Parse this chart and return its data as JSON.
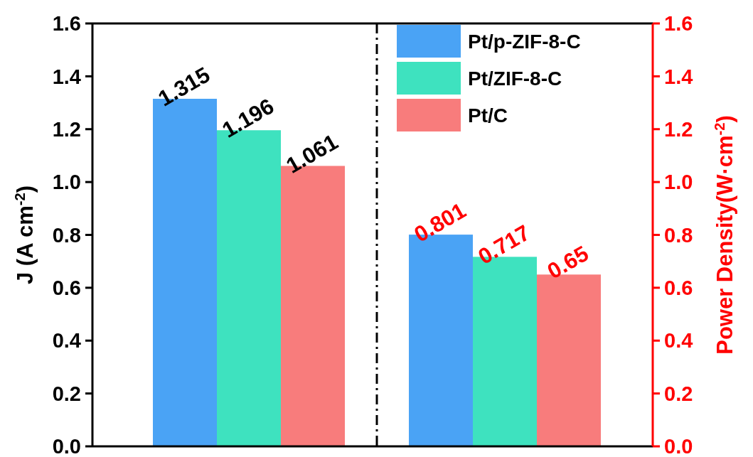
{
  "chart_data": {
    "type": "bar",
    "categories": [
      null,
      null
    ],
    "ylabel": "J (A cm$^{-2}$)",
    "y2label": "Power Density(W·cm$^{-2}$)",
    "ylim": [
      0,
      1.6
    ],
    "yticks": [
      {
        "value": 0,
        "label": "0.0"
      },
      0.2,
      0.4,
      0.6,
      0.8,
      {
        "value": 1,
        "label": "1.0"
      },
      1.2,
      1.4,
      1.6
    ],
    "y2lim": [
      0,
      1.6
    ],
    "y2ticks": [
      {
        "value": 0,
        "label": "0.0"
      },
      0.2,
      0.4,
      0.6,
      0.8,
      {
        "value": 1,
        "label": "1.0"
      },
      1.2,
      1.4,
      1.6
    ],
    "series": [
      {
        "name": "Pt/p-ZIF-8-C",
        "color": "#4aa3f5",
        "values": [
          1.315,
          null
        ]
      },
      {
        "name": "Pt/ZIF-8-C",
        "color": "#3ee2bf",
        "values": [
          1.196,
          null
        ]
      },
      {
        "name": "Pt/C",
        "color": "#f87c7c",
        "values": [
          1.061,
          null
        ]
      },
      {
        "color": "#4aa3f5",
        "values": [
          null,
          0.801
        ],
        "axis": "y2"
      },
      {
        "color": "#3ee2bf",
        "values": [
          null,
          0.717
        ],
        "axis": "y2"
      },
      {
        "color": "#f87c7c",
        "values": [
          null,
          0.65
        ],
        "axis": "y2"
      }
    ],
    "data_labels": true,
    "legend": "top right",
    "grid": false
  }
}
